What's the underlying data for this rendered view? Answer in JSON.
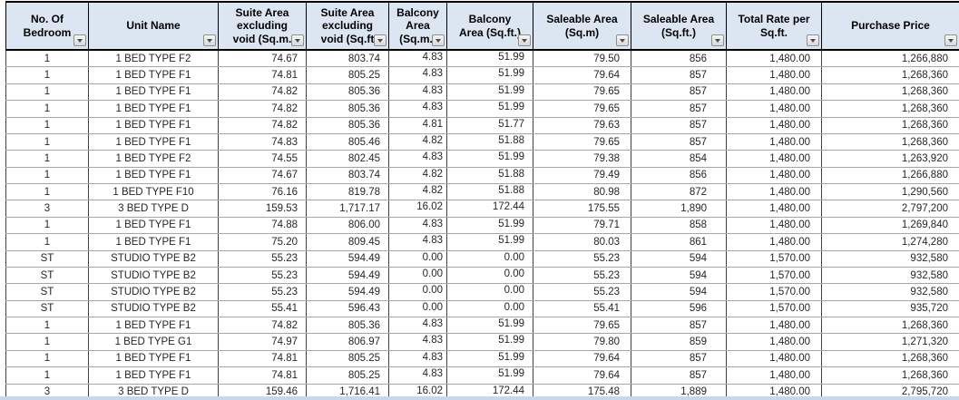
{
  "app": {
    "type": "spreadsheet-price-list"
  },
  "colors": {
    "header_bg": "#dce6f2",
    "header_border": "#000000",
    "grid_vertical": "#3f3f3f",
    "grid_horizontal": "#a6a6a6",
    "bottom_strip": "#c6d8f1",
    "text": "#262626"
  },
  "table": {
    "columns": [
      {
        "id": "bedrooms",
        "lines": [
          "No. Of",
          "Bedroom"
        ]
      },
      {
        "id": "unit-name",
        "lines": [
          "Unit Name"
        ]
      },
      {
        "id": "suite-area-sqm",
        "lines": [
          "Suite Area",
          "excluding",
          "void (Sq.m."
        ]
      },
      {
        "id": "suite-area-sqft",
        "lines": [
          "Suite Area",
          "excluding",
          "void  (Sq.ft"
        ]
      },
      {
        "id": "balcony-sqm",
        "lines": [
          "Balcony",
          "Area",
          "(Sq.m.)"
        ]
      },
      {
        "id": "balcony-sqft",
        "lines": [
          "Balcony",
          "Area (Sq.ft.)"
        ]
      },
      {
        "id": "saleable-sqm",
        "lines": [
          "Saleable Area",
          "(Sq.m)"
        ]
      },
      {
        "id": "saleable-sqft",
        "lines": [
          "Saleable Area",
          "(Sq.ft.)"
        ]
      },
      {
        "id": "rate",
        "lines": [
          "Total Rate per",
          "Sq.ft."
        ]
      },
      {
        "id": "price",
        "lines": [
          "Purchase Price"
        ]
      }
    ],
    "rows": [
      [
        "1",
        "1 BED TYPE F2",
        "74.67",
        "803.74",
        "4.83",
        "51.99",
        "79.50",
        "856",
        "1,480.00",
        "1,266,880"
      ],
      [
        "1",
        "1 BED TYPE F1",
        "74.81",
        "805.25",
        "4.83",
        "51.99",
        "79.64",
        "857",
        "1,480.00",
        "1,268,360"
      ],
      [
        "1",
        "1 BED TYPE F1",
        "74.82",
        "805.36",
        "4.83",
        "51.99",
        "79.65",
        "857",
        "1,480.00",
        "1,268,360"
      ],
      [
        "1",
        "1 BED TYPE F1",
        "74.82",
        "805.36",
        "4.83",
        "51.99",
        "79.65",
        "857",
        "1,480.00",
        "1,268,360"
      ],
      [
        "1",
        "1 BED TYPE F1",
        "74.82",
        "805.36",
        "4.81",
        "51.77",
        "79.63",
        "857",
        "1,480.00",
        "1,268,360"
      ],
      [
        "1",
        "1 BED TYPE F1",
        "74.83",
        "805.46",
        "4.82",
        "51.88",
        "79.65",
        "857",
        "1,480.00",
        "1,268,360"
      ],
      [
        "1",
        "1 BED TYPE F2",
        "74.55",
        "802.45",
        "4.83",
        "51.99",
        "79.38",
        "854",
        "1,480.00",
        "1,263,920"
      ],
      [
        "1",
        "1 BED TYPE F1",
        "74.67",
        "803.74",
        "4.82",
        "51.88",
        "79.49",
        "856",
        "1,480.00",
        "1,266,880"
      ],
      [
        "1",
        "1 BED TYPE F10",
        "76.16",
        "819.78",
        "4.82",
        "51.88",
        "80.98",
        "872",
        "1,480.00",
        "1,290,560"
      ],
      [
        "3",
        "3 BED TYPE D",
        "159.53",
        "1,717.17",
        "16.02",
        "172.44",
        "175.55",
        "1,890",
        "1,480.00",
        "2,797,200"
      ],
      [
        "1",
        "1 BED TYPE F1",
        "74.88",
        "806.00",
        "4.83",
        "51.99",
        "79.71",
        "858",
        "1,480.00",
        "1,269,840"
      ],
      [
        "1",
        "1 BED TYPE F1",
        "75.20",
        "809.45",
        "4.83",
        "51.99",
        "80.03",
        "861",
        "1,480.00",
        "1,274,280"
      ],
      [
        "ST",
        "STUDIO TYPE B2",
        "55.23",
        "594.49",
        "0.00",
        "0.00",
        "55.23",
        "594",
        "1,570.00",
        "932,580"
      ],
      [
        "ST",
        "STUDIO TYPE B2",
        "55.23",
        "594.49",
        "0.00",
        "0.00",
        "55.23",
        "594",
        "1,570.00",
        "932,580"
      ],
      [
        "ST",
        "STUDIO TYPE B2",
        "55.23",
        "594.49",
        "0.00",
        "0.00",
        "55.23",
        "594",
        "1,570.00",
        "932,580"
      ],
      [
        "ST",
        "STUDIO TYPE B2",
        "55.41",
        "596.43",
        "0.00",
        "0.00",
        "55.41",
        "596",
        "1,570.00",
        "935,720"
      ],
      [
        "1",
        "1 BED TYPE F1",
        "74.82",
        "805.36",
        "4.83",
        "51.99",
        "79.65",
        "857",
        "1,480.00",
        "1,268,360"
      ],
      [
        "1",
        "1 BED TYPE G1",
        "74.97",
        "806.97",
        "4.83",
        "51.99",
        "79.80",
        "859",
        "1,480.00",
        "1,271,320"
      ],
      [
        "1",
        "1 BED TYPE F1",
        "74.81",
        "805.25",
        "4.83",
        "51.99",
        "79.64",
        "857",
        "1,480.00",
        "1,268,360"
      ],
      [
        "1",
        "1 BED TYPE F1",
        "74.81",
        "805.25",
        "4.83",
        "51.99",
        "79.64",
        "857",
        "1,480.00",
        "1,268,360"
      ],
      [
        "3",
        "3 BED TYPE D",
        "159.46",
        "1,716.41",
        "16.02",
        "172.44",
        "175.48",
        "1,889",
        "1,480.00",
        "2,795,720"
      ]
    ]
  }
}
